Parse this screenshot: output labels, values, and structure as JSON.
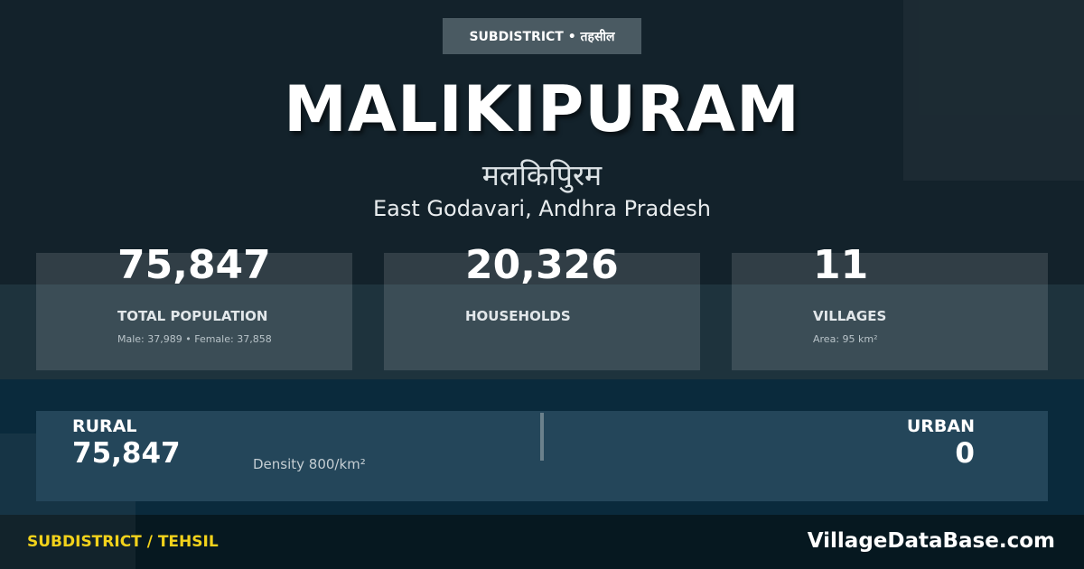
{
  "badge": "SUBDISTRICT • तहसील",
  "title": "MALIKIPURAM",
  "title_hindi": "मलकिपिुरम",
  "location": "East Godavari, Andhra Pradesh",
  "stats": [
    {
      "value": "75,847",
      "label": "TOTAL POPULATION",
      "sub": "Male: 37,989 • Female: 37,858"
    },
    {
      "value": "20,326",
      "label": "HOUSEHOLDS",
      "sub": ""
    },
    {
      "value": "11",
      "label": "VILLAGES",
      "sub": "Area: 95 km²"
    }
  ],
  "rural": {
    "label": "RURAL",
    "value": "75,847"
  },
  "density": "Density 800/km²",
  "urban": {
    "label": "URBAN",
    "value": "0"
  },
  "footer": {
    "category": "SUBDISTRICT / TEHSIL",
    "brand": "VillageDataBase.com"
  },
  "colors": {
    "accent": "#f2d21b",
    "background": "#13222b"
  }
}
